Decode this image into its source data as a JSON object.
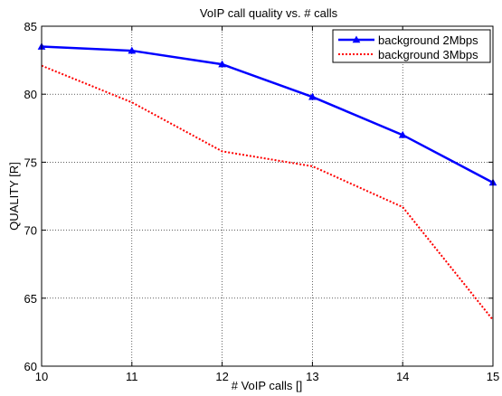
{
  "chart_data": {
    "type": "line",
    "title": "VoIP call quality vs. # calls",
    "xlabel": "# VoIP calls []",
    "ylabel": "QUALITY [R]",
    "x": [
      10,
      11,
      12,
      13,
      14,
      15
    ],
    "xlim": [
      10,
      15
    ],
    "ylim": [
      60,
      85
    ],
    "xticks": [
      "10",
      "11",
      "12",
      "13",
      "14",
      "15"
    ],
    "yticks": [
      "60",
      "65",
      "70",
      "75",
      "80",
      "85"
    ],
    "grid": true,
    "legend_position": "top-right",
    "series": [
      {
        "name": "background 2Mbps",
        "values": [
          83.5,
          83.2,
          82.2,
          79.8,
          77.0,
          73.5
        ],
        "color": "#0000ff",
        "style": "solid",
        "marker": "triangle"
      },
      {
        "name": "background 3Mbps",
        "values": [
          82.1,
          79.4,
          75.8,
          74.7,
          71.7,
          63.4
        ],
        "color": "#ff0000",
        "style": "dotted",
        "marker": "none"
      }
    ]
  }
}
